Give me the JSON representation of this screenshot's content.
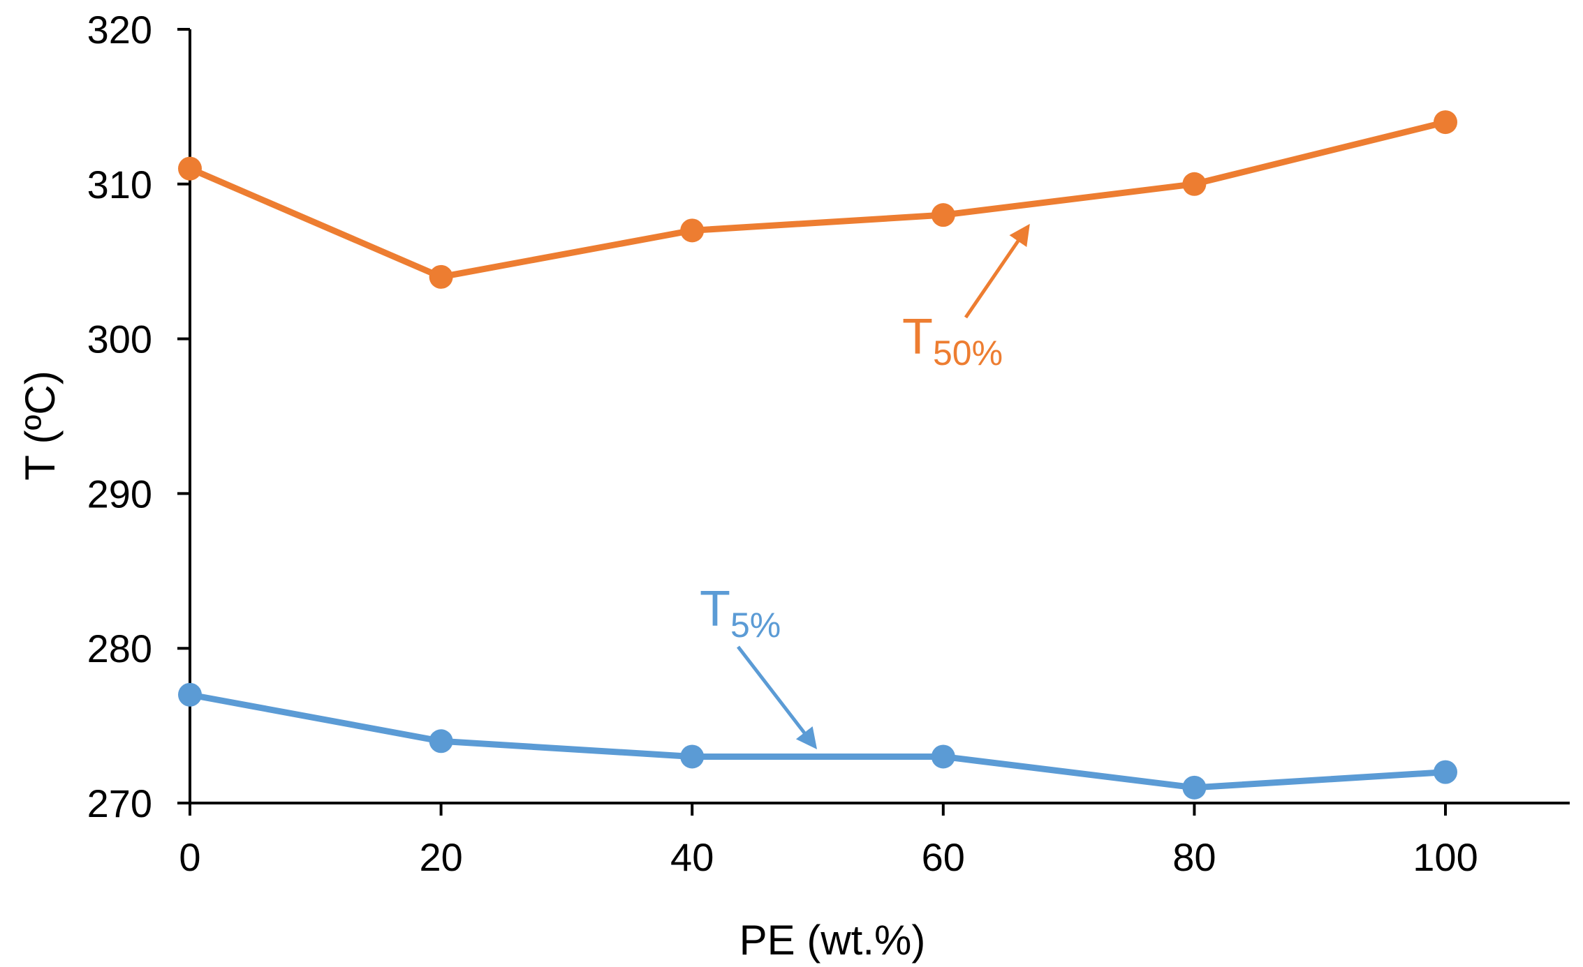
{
  "chart_data": {
    "type": "line",
    "title": "",
    "xlabel": "PE (wt.%)",
    "ylabel": "T (ºC)",
    "x": [
      0,
      20,
      40,
      60,
      80,
      100
    ],
    "xlim": [
      0,
      110
    ],
    "ylim": [
      270,
      320
    ],
    "xticks": [
      "0",
      "20",
      "40",
      "60",
      "80",
      "100"
    ],
    "yticks": [
      "270",
      "280",
      "290",
      "300",
      "310",
      "320"
    ],
    "grid": false,
    "series": [
      {
        "name": "T50%",
        "color": "#ED7D31",
        "values": [
          311,
          304,
          307,
          308,
          310,
          314
        ],
        "label_main": "T",
        "label_sub": "50%"
      },
      {
        "name": "T5%",
        "color": "#5B9BD5",
        "values": [
          277,
          274,
          273,
          273,
          271,
          272
        ],
        "label_main": "T",
        "label_sub": "5%"
      }
    ]
  }
}
